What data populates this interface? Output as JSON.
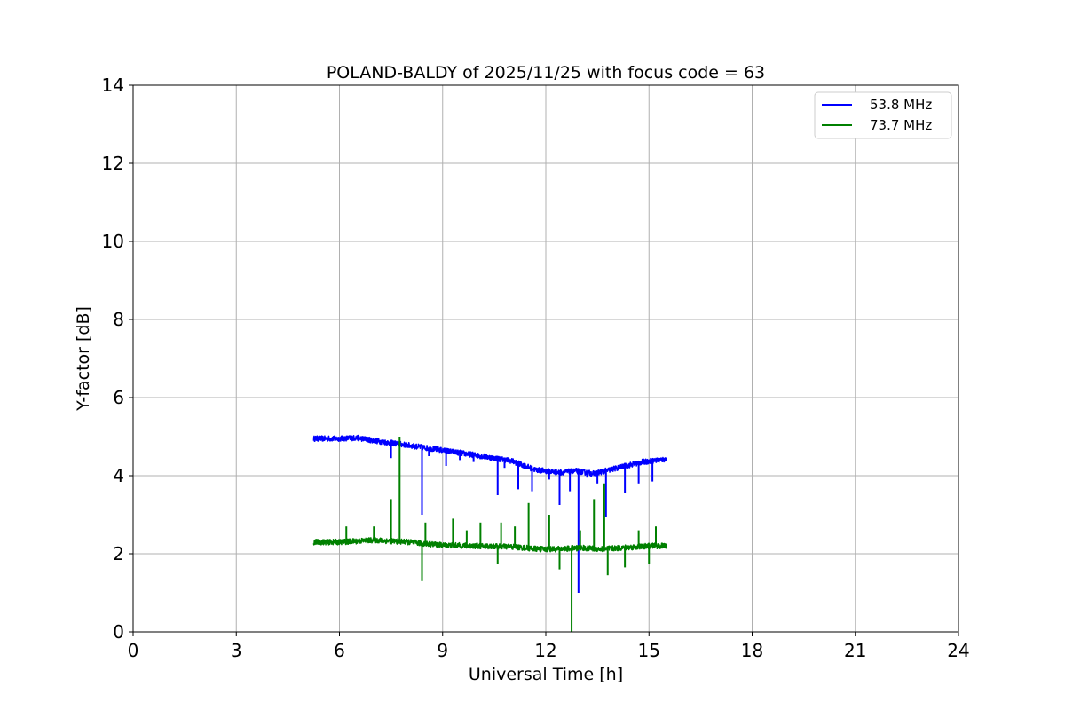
{
  "chart_data": {
    "type": "line",
    "title": "POLAND-BALDY of 2025/11/25 with focus code = 63",
    "xlabel": "Universal Time [h]",
    "ylabel": "Y-factor [dB]",
    "xlim": [
      0,
      24
    ],
    "ylim": [
      0,
      14
    ],
    "xticks": [
      0,
      3,
      6,
      9,
      12,
      15,
      18,
      21,
      24
    ],
    "yticks": [
      0,
      2,
      4,
      6,
      8,
      10,
      12,
      14
    ],
    "grid": true,
    "legend_position": "top-right",
    "series": [
      {
        "name": "53.8 MHz",
        "color": "#0000ff",
        "noise": 0.07,
        "x": [
          5.25,
          6.0,
          6.5,
          7.0,
          8.0,
          9.0,
          10.0,
          11.0,
          11.7,
          12.4,
          12.9,
          13.4,
          14.0,
          14.8,
          15.5
        ],
        "y": [
          4.95,
          4.95,
          4.97,
          4.9,
          4.78,
          4.65,
          4.52,
          4.38,
          4.15,
          4.08,
          4.12,
          4.05,
          4.18,
          4.35,
          4.42
        ],
        "spikes": [
          {
            "x": 7.5,
            "y": 4.45
          },
          {
            "x": 8.4,
            "y": 3.0
          },
          {
            "x": 8.6,
            "y": 4.5
          },
          {
            "x": 9.1,
            "y": 4.25
          },
          {
            "x": 9.5,
            "y": 4.4
          },
          {
            "x": 9.9,
            "y": 4.35
          },
          {
            "x": 10.6,
            "y": 3.5
          },
          {
            "x": 10.8,
            "y": 4.2
          },
          {
            "x": 11.2,
            "y": 3.65
          },
          {
            "x": 11.6,
            "y": 3.6
          },
          {
            "x": 12.1,
            "y": 3.9
          },
          {
            "x": 12.4,
            "y": 3.25
          },
          {
            "x": 12.7,
            "y": 3.6
          },
          {
            "x": 12.95,
            "y": 1.0
          },
          {
            "x": 13.2,
            "y": 3.95
          },
          {
            "x": 13.5,
            "y": 3.8
          },
          {
            "x": 13.75,
            "y": 2.95
          },
          {
            "x": 14.3,
            "y": 3.55
          },
          {
            "x": 14.7,
            "y": 3.8
          },
          {
            "x": 15.1,
            "y": 3.85
          }
        ]
      },
      {
        "name": "73.7 MHz",
        "color": "#008000",
        "noise": 0.07,
        "x": [
          5.25,
          6.0,
          7.0,
          8.0,
          9.0,
          10.0,
          11.0,
          11.8,
          12.4,
          13.0,
          13.6,
          14.2,
          15.0,
          15.5
        ],
        "y": [
          2.3,
          2.3,
          2.35,
          2.3,
          2.22,
          2.2,
          2.18,
          2.12,
          2.12,
          2.15,
          2.12,
          2.15,
          2.2,
          2.2
        ],
        "spikes": [
          {
            "x": 6.2,
            "y": 2.7
          },
          {
            "x": 7.0,
            "y": 2.7
          },
          {
            "x": 7.5,
            "y": 3.4
          },
          {
            "x": 7.75,
            "y": 5.0
          },
          {
            "x": 8.4,
            "y": 1.3
          },
          {
            "x": 8.5,
            "y": 2.8
          },
          {
            "x": 9.3,
            "y": 2.9
          },
          {
            "x": 9.7,
            "y": 2.6
          },
          {
            "x": 10.1,
            "y": 2.8
          },
          {
            "x": 10.6,
            "y": 1.75
          },
          {
            "x": 10.7,
            "y": 2.8
          },
          {
            "x": 11.1,
            "y": 2.7
          },
          {
            "x": 11.5,
            "y": 3.3
          },
          {
            "x": 12.1,
            "y": 3.0
          },
          {
            "x": 12.4,
            "y": 1.6
          },
          {
            "x": 12.75,
            "y": 0.0
          },
          {
            "x": 13.0,
            "y": 2.6
          },
          {
            "x": 13.4,
            "y": 3.4
          },
          {
            "x": 13.7,
            "y": 3.8
          },
          {
            "x": 13.8,
            "y": 1.45
          },
          {
            "x": 14.3,
            "y": 1.65
          },
          {
            "x": 14.7,
            "y": 2.6
          },
          {
            "x": 15.0,
            "y": 1.75
          },
          {
            "x": 15.2,
            "y": 2.7
          }
        ]
      }
    ]
  }
}
